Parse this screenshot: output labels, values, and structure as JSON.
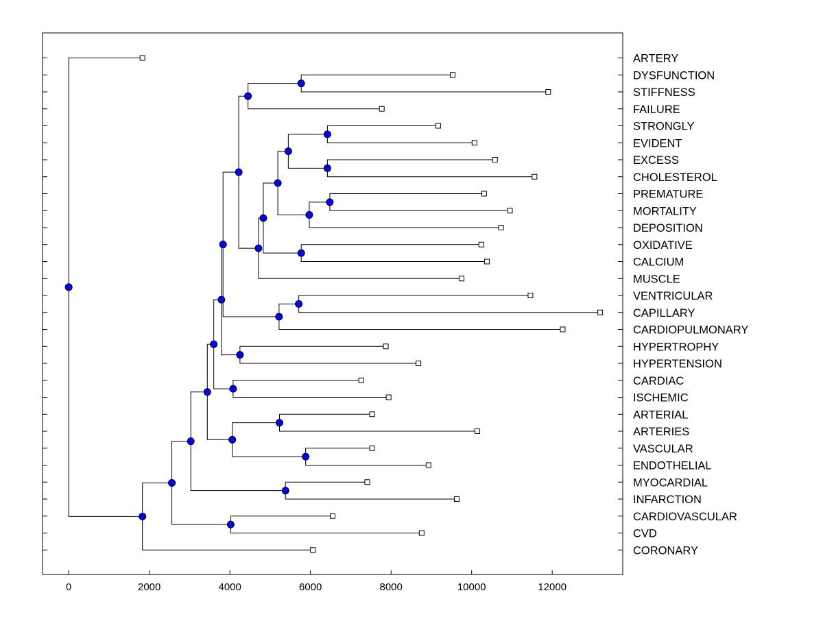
{
  "chart_data": {
    "type": "dendrogram",
    "orientation": "horizontal",
    "title": "",
    "xlabel": "",
    "ylabel": "",
    "xlim": [
      -650,
      13750
    ],
    "x_ticks": [
      0,
      2000,
      4000,
      6000,
      8000,
      10000,
      12000
    ],
    "x_tick_labels": [
      "0",
      "2000",
      "4000",
      "6000",
      "8000",
      "10000",
      "12000"
    ],
    "grid": false,
    "legend": "none",
    "leaf_marker": "open-square",
    "node_marker": "filled-circle",
    "colors": {
      "node_fill": "#0000ff",
      "line": "#000000",
      "leaf_fill": "#ffffff",
      "background": "#ffffff"
    },
    "leaves": [
      {
        "label": "ARTERY",
        "value": 1830
      },
      {
        "label": "DYSFUNCTION",
        "value": 9530
      },
      {
        "label": "STIFFNESS",
        "value": 11900
      },
      {
        "label": "FAILURE",
        "value": 7770
      },
      {
        "label": "STRONGLY",
        "value": 9170
      },
      {
        "label": "EVIDENT",
        "value": 10070
      },
      {
        "label": "EXCESS",
        "value": 10580
      },
      {
        "label": "CHOLESTEROL",
        "value": 11560
      },
      {
        "label": "PREMATURE",
        "value": 10310
      },
      {
        "label": "MORTALITY",
        "value": 10950
      },
      {
        "label": "DEPOSITION",
        "value": 10730
      },
      {
        "label": "OXIDATIVE",
        "value": 10240
      },
      {
        "label": "CALCIUM",
        "value": 10380
      },
      {
        "label": "MUSCLE",
        "value": 9750
      },
      {
        "label": "VENTRICULAR",
        "value": 11460
      },
      {
        "label": "CAPILLARY",
        "value": 13190
      },
      {
        "label": "CARDIOPULMONARY",
        "value": 12260
      },
      {
        "label": "HYPERTROPHY",
        "value": 7870
      },
      {
        "label": "HYPERTENSION",
        "value": 8680
      },
      {
        "label": "CARDIAC",
        "value": 7260
      },
      {
        "label": "ISCHEMIC",
        "value": 7940
      },
      {
        "label": "ARTERIAL",
        "value": 7530
      },
      {
        "label": "ARTERIES",
        "value": 10140
      },
      {
        "label": "VASCULAR",
        "value": 7530
      },
      {
        "label": "ENDOTHELIAL",
        "value": 8930
      },
      {
        "label": "MYOCARDIAL",
        "value": 7410
      },
      {
        "label": "INFARCTION",
        "value": 9630
      },
      {
        "label": "CARDIOVASCULAR",
        "value": 6550
      },
      {
        "label": "CVD",
        "value": 8760
      },
      {
        "label": "CORONARY",
        "value": 6060
      }
    ],
    "merges": [
      {
        "id": "n_dys_stiff",
        "children": [
          "DYSFUNCTION",
          "STIFFNESS"
        ],
        "value": 5770
      },
      {
        "id": "n_dys_fail",
        "children": [
          "n_dys_stiff",
          "FAILURE"
        ],
        "value": 4450
      },
      {
        "id": "n_strong_evid",
        "children": [
          "STRONGLY",
          "EVIDENT"
        ],
        "value": 6420
      },
      {
        "id": "n_exc_chol",
        "children": [
          "EXCESS",
          "CHOLESTEROL"
        ],
        "value": 6420
      },
      {
        "id": "n_strong_chol",
        "children": [
          "n_strong_evid",
          "n_exc_chol"
        ],
        "value": 5450
      },
      {
        "id": "n_prem_mort",
        "children": [
          "PREMATURE",
          "MORTALITY"
        ],
        "value": 6480
      },
      {
        "id": "n_prem_dep",
        "children": [
          "n_prem_mort",
          "DEPOSITION"
        ],
        "value": 5970
      },
      {
        "id": "n_strong_dep",
        "children": [
          "n_strong_chol",
          "n_prem_dep"
        ],
        "value": 5190
      },
      {
        "id": "n_oxi_calc",
        "children": [
          "OXIDATIVE",
          "CALCIUM"
        ],
        "value": 5770
      },
      {
        "id": "n_strong_calc",
        "children": [
          "n_strong_dep",
          "n_oxi_calc"
        ],
        "value": 4830
      },
      {
        "id": "n_strong_musc",
        "children": [
          "n_strong_calc",
          "MUSCLE"
        ],
        "value": 4710
      },
      {
        "id": "n_dys_musc",
        "children": [
          "n_dys_fail",
          "n_strong_musc"
        ],
        "value": 4220
      },
      {
        "id": "n_vent_cap",
        "children": [
          "VENTRICULAR",
          "CAPILLARY"
        ],
        "value": 5710
      },
      {
        "id": "n_vent_cardio",
        "children": [
          "n_vent_cap",
          "CARDIOPULMONARY"
        ],
        "value": 5220
      },
      {
        "id": "n_dys_cardio",
        "children": [
          "n_dys_musc",
          "n_vent_cardio"
        ],
        "value": 3830
      },
      {
        "id": "n_hyp",
        "children": [
          "HYPERTROPHY",
          "HYPERTENSION"
        ],
        "value": 4250
      },
      {
        "id": "n_dys_hyp",
        "children": [
          "n_dys_cardio",
          "n_hyp"
        ],
        "value": 3790
      },
      {
        "id": "n_card_isch",
        "children": [
          "CARDIAC",
          "ISCHEMIC"
        ],
        "value": 4080
      },
      {
        "id": "n_dys_isch",
        "children": [
          "n_dys_hyp",
          "n_card_isch"
        ],
        "value": 3600
      },
      {
        "id": "n_art",
        "children": [
          "ARTERIAL",
          "ARTERIES"
        ],
        "value": 5230
      },
      {
        "id": "n_vasc_endo",
        "children": [
          "VASCULAR",
          "ENDOTHELIAL"
        ],
        "value": 5880
      },
      {
        "id": "n_art_endo",
        "children": [
          "n_art",
          "n_vasc_endo"
        ],
        "value": 4060
      },
      {
        "id": "n_dys_endo",
        "children": [
          "n_dys_isch",
          "n_art_endo"
        ],
        "value": 3440
      },
      {
        "id": "n_myo_inf",
        "children": [
          "MYOCARDIAL",
          "INFARCTION"
        ],
        "value": 5380
      },
      {
        "id": "n_dys_inf",
        "children": [
          "n_dys_endo",
          "n_myo_inf"
        ],
        "value": 3030
      },
      {
        "id": "n_cv_cvd",
        "children": [
          "CARDIOVASCULAR",
          "CVD"
        ],
        "value": 4020
      },
      {
        "id": "n_dys_cvd",
        "children": [
          "n_dys_inf",
          "n_cv_cvd"
        ],
        "value": 2560
      },
      {
        "id": "n_dys_cor",
        "children": [
          "n_dys_cvd",
          "CORONARY"
        ],
        "value": 1830
      },
      {
        "id": "root",
        "children": [
          "ARTERY",
          "n_dys_cor"
        ],
        "value": 0
      }
    ]
  }
}
